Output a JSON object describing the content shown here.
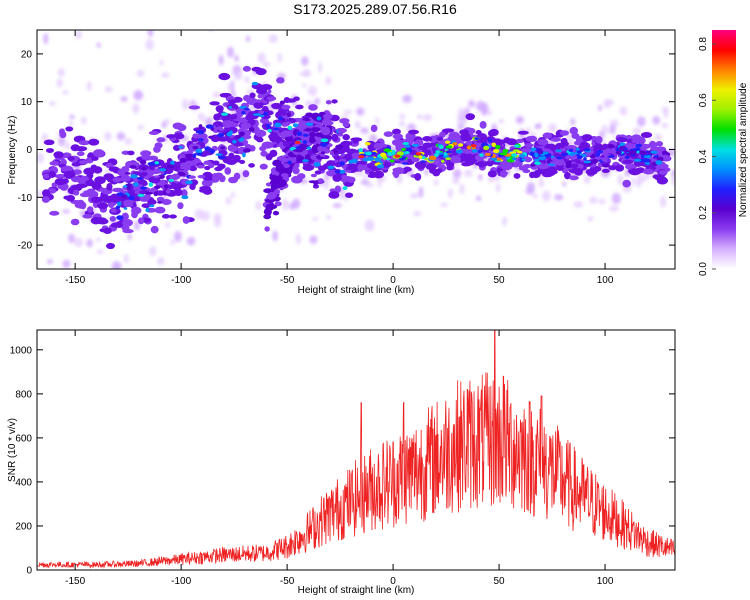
{
  "title": "S173.2025.289.07.56.R16",
  "chart_data": [
    {
      "type": "heatmap",
      "name": "spectrogram",
      "xlabel": "Height of straight line (km)",
      "ylabel": "Frequency (Hz)",
      "xlim": [
        -168,
        133
      ],
      "ylim": [
        -25,
        25
      ],
      "xticks": [
        -150,
        -100,
        -50,
        0,
        50,
        100
      ],
      "yticks": [
        -20,
        -10,
        0,
        10,
        20
      ],
      "colorbar": {
        "label": "Normalized spectral amplitude",
        "range": [
          0.0,
          0.85
        ],
        "ticks": [
          0.0,
          0.2,
          0.4,
          0.6,
          0.8
        ],
        "colors": [
          "#ffffff",
          "#d6b0ff",
          "#8a3cf0",
          "#5a00d0",
          "#2020ff",
          "#0090ff",
          "#00e0e0",
          "#00e000",
          "#a0f000",
          "#f0f000",
          "#ff8000",
          "#ff0000",
          "#ff0080"
        ]
      },
      "ridge": {
        "x": [
          -165,
          -150,
          -140,
          -130,
          -120,
          -110,
          -100,
          -90,
          -80,
          -70,
          -60,
          -50,
          -40,
          -30,
          -20,
          -10,
          0,
          10,
          20,
          30,
          40,
          50,
          60,
          70,
          80,
          90,
          100,
          110,
          120,
          130
        ],
        "y": [
          -4,
          -6,
          -8,
          -9,
          -8,
          -6,
          -4,
          -1,
          2,
          5,
          8,
          3,
          0,
          -1,
          -1.5,
          -1.5,
          -1.5,
          -1,
          -0.5,
          0,
          1,
          -1,
          -1,
          -1,
          -1.5,
          -1.5,
          -1,
          -0.5,
          -1,
          -2
        ]
      },
      "secondary_branch": {
        "x": [
          -60,
          -55,
          -50,
          -45,
          -40,
          -35,
          -30
        ],
        "y": [
          -12,
          -7,
          -3,
          1,
          3,
          4,
          5
        ]
      }
    },
    {
      "type": "line",
      "name": "snr",
      "xlabel": "Height of straight line (km)",
      "ylabel": "SNR (10 * v/v)",
      "xlim": [
        -168,
        133
      ],
      "ylim": [
        0,
        1090
      ],
      "xticks": [
        -150,
        -100,
        -50,
        0,
        50,
        100
      ],
      "yticks": [
        0,
        200,
        400,
        600,
        800,
        1000
      ],
      "color": "#ee2222",
      "envelope": {
        "x": [
          -168,
          -140,
          -120,
          -100,
          -80,
          -60,
          -50,
          -40,
          -30,
          -20,
          -10,
          0,
          10,
          20,
          30,
          40,
          50,
          60,
          70,
          80,
          90,
          100,
          110,
          120,
          133
        ],
        "y": [
          25,
          25,
          30,
          50,
          70,
          80,
          110,
          180,
          260,
          320,
          380,
          420,
          460,
          520,
          580,
          600,
          600,
          560,
          500,
          420,
          340,
          270,
          200,
          130,
          90
        ]
      },
      "peaks": [
        {
          "x": -15,
          "y": 760
        },
        {
          "x": 5,
          "y": 760
        },
        {
          "x": 35,
          "y": 820
        },
        {
          "x": 48,
          "y": 1090
        },
        {
          "x": 52,
          "y": 880
        },
        {
          "x": 70,
          "y": 790
        }
      ]
    }
  ]
}
